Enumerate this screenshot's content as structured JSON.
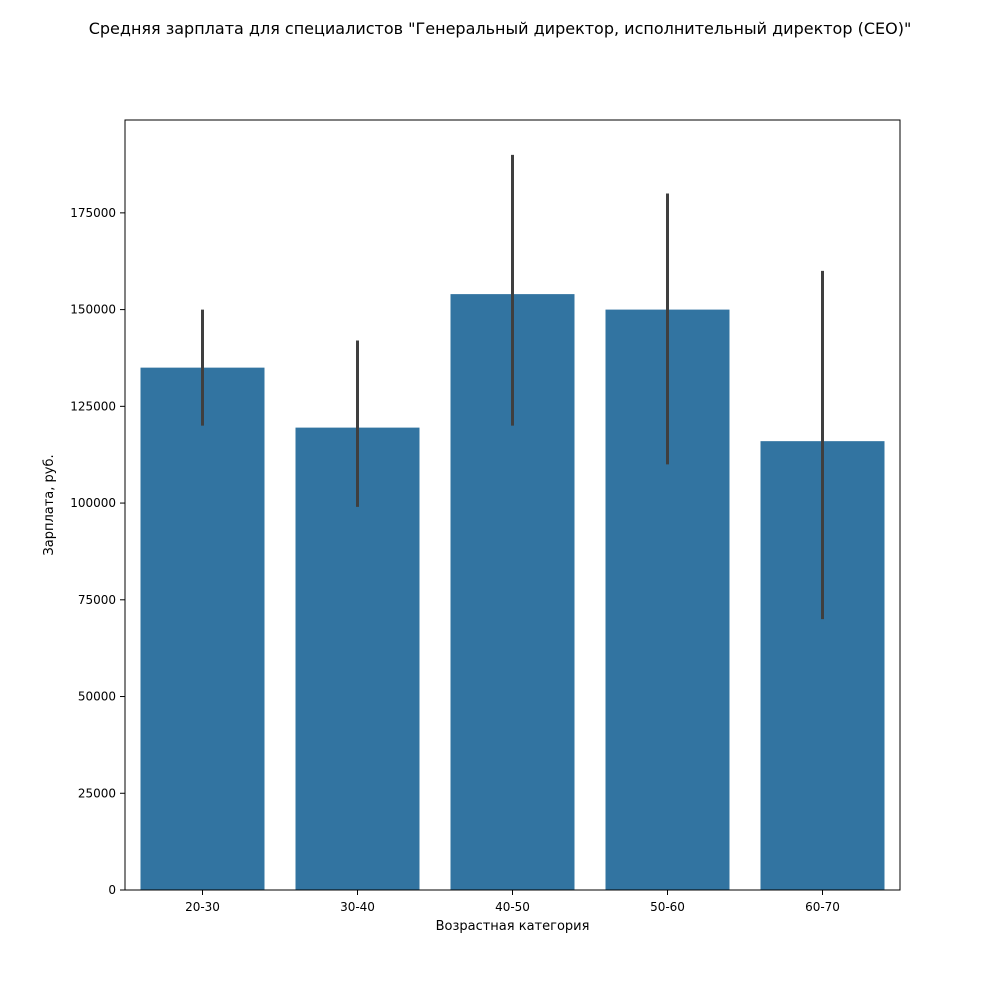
{
  "chart_data": {
    "type": "bar",
    "title": "Средняя зарплата для специалистов \"Генеральный директор, исполнительный директор (CEO)\"",
    "xlabel": "Возрастная категория",
    "ylabel": "Зарплата, руб.",
    "categories": [
      "20-30",
      "30-40",
      "40-50",
      "50-60",
      "60-70"
    ],
    "values": [
      135000,
      119500,
      154000,
      150000,
      116000
    ],
    "error_low": [
      120000,
      99000,
      120000,
      110000,
      70000
    ],
    "error_high": [
      150000,
      142000,
      190000,
      180000,
      160000
    ],
    "ylim": [
      0,
      199000
    ],
    "yticks": [
      0,
      25000,
      50000,
      75000,
      100000,
      125000,
      150000,
      175000
    ],
    "grid": false,
    "bar_color": "#3274a1",
    "error_color": "#3f3f3f"
  }
}
